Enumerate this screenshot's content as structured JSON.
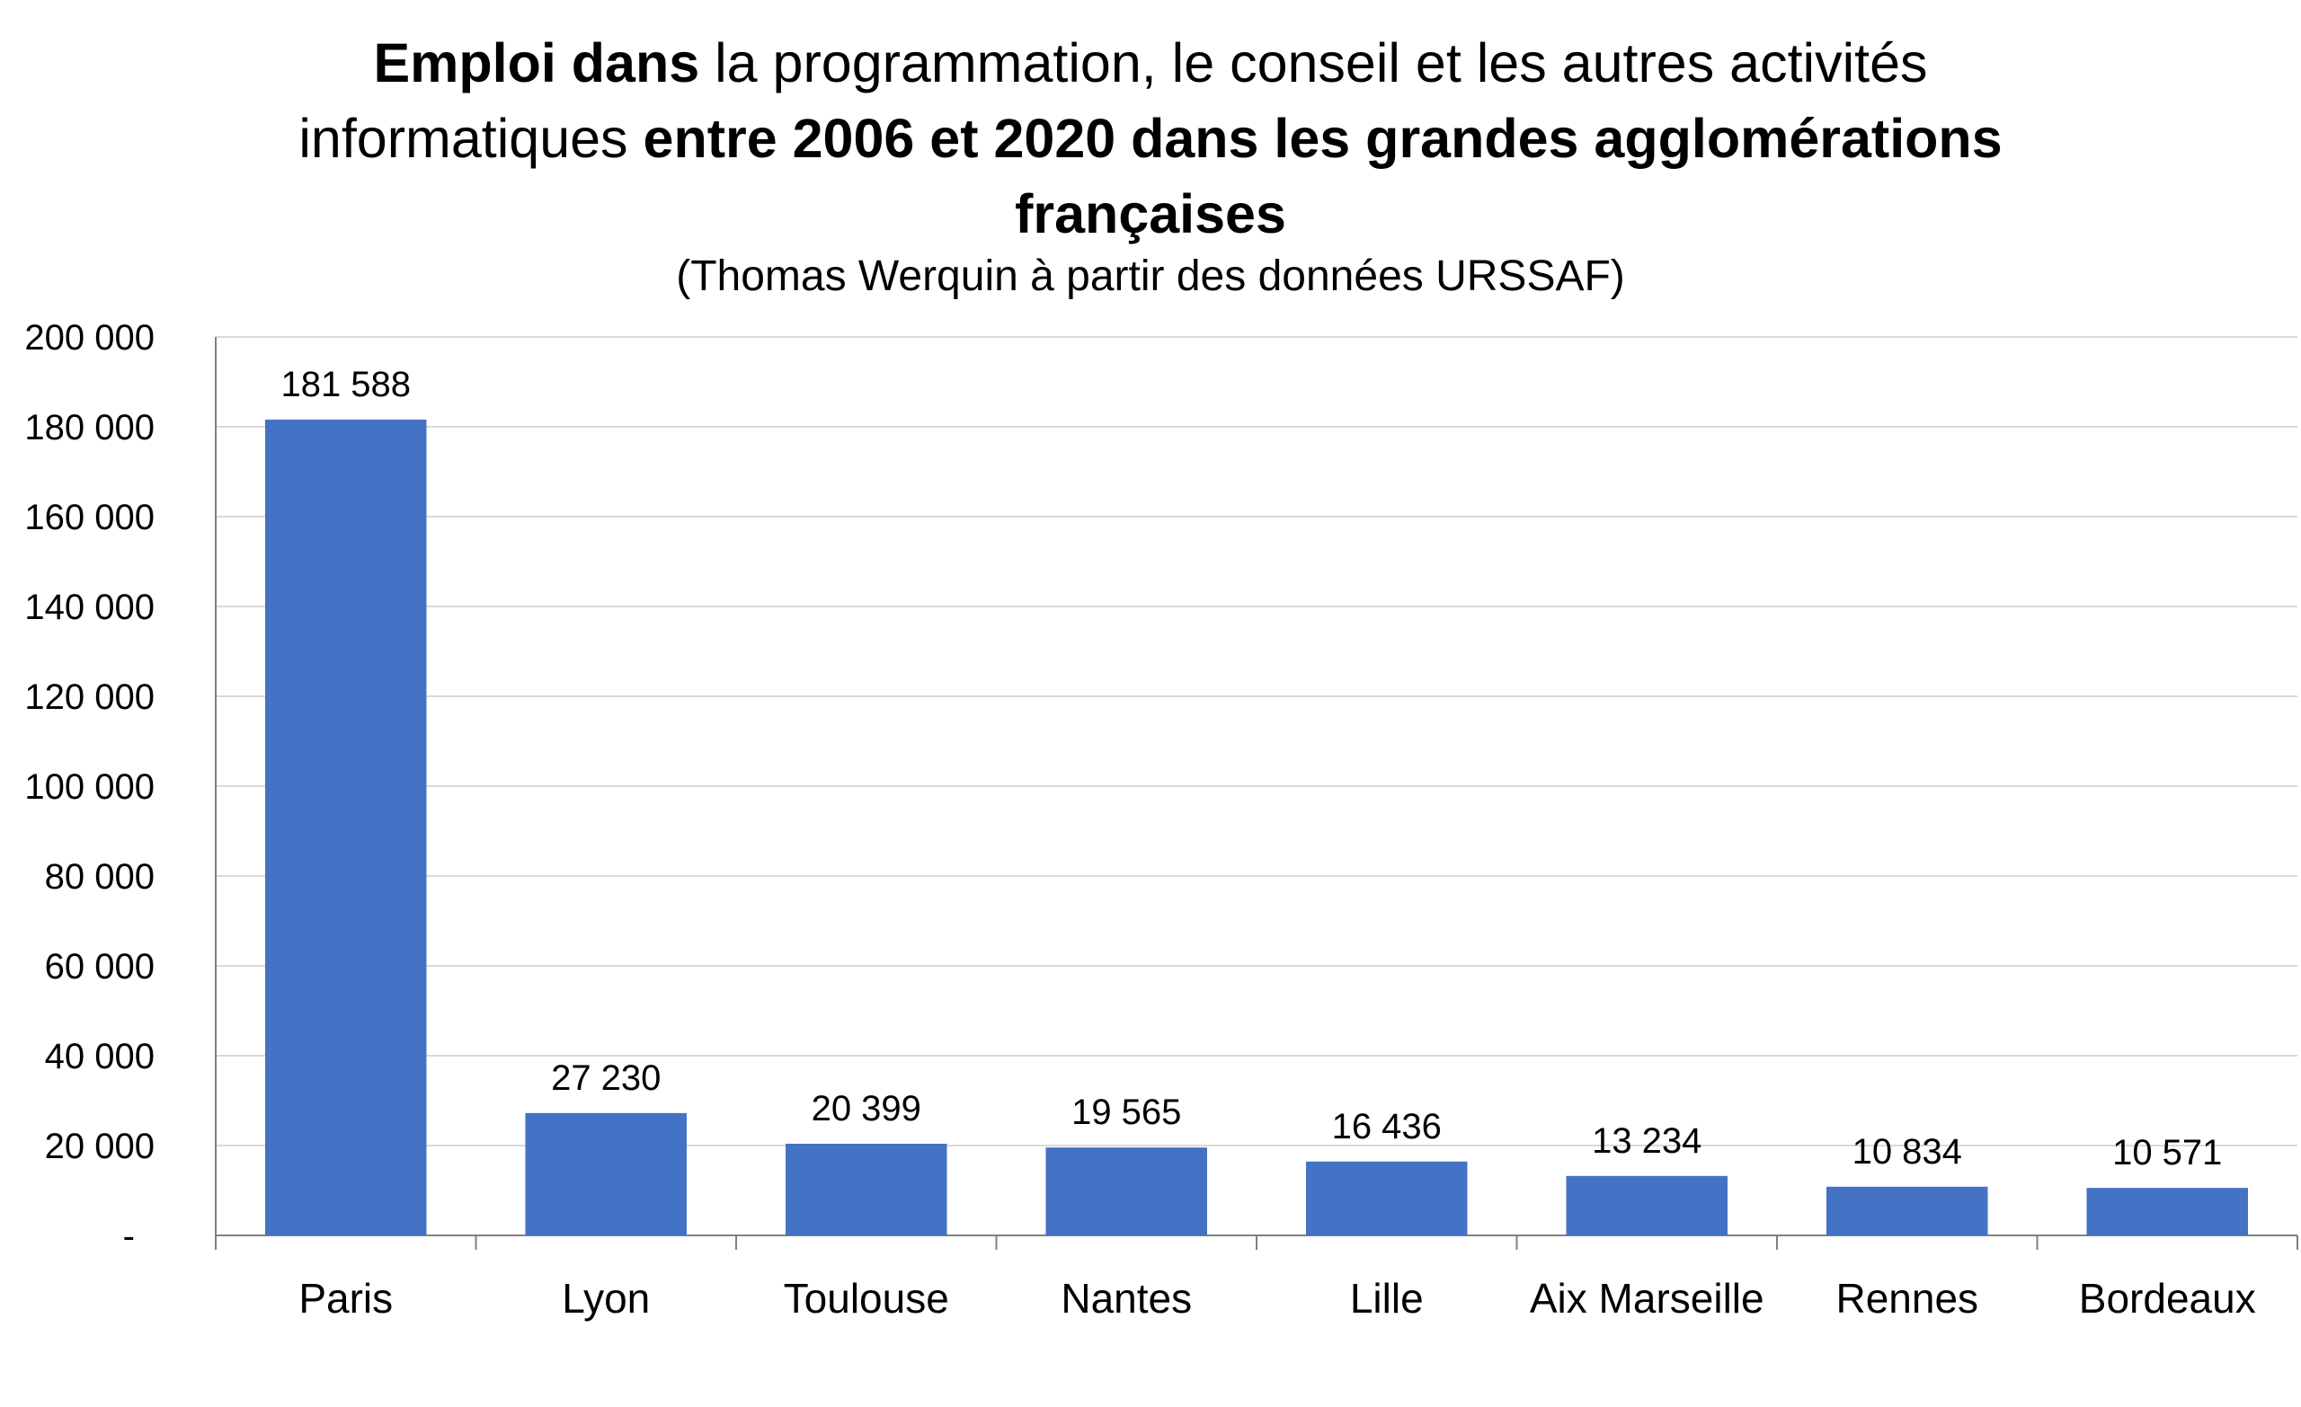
{
  "chart_data": {
    "type": "bar",
    "title_parts": [
      {
        "text": "Emploi dans",
        "bold": true
      },
      {
        "text": " la programmation, le conseil et les autres activités informatiques ",
        "bold": false
      },
      {
        "text": "entre 2006 et 2020 dans les grandes agglomérations françaises",
        "bold": true
      }
    ],
    "subtitle": "(Thomas Werquin à partir des données URSSAF)",
    "categories": [
      "Paris",
      "Lyon",
      "Toulouse",
      "Nantes",
      "Lille",
      "Aix Marseille",
      "Rennes",
      "Bordeaux"
    ],
    "values": [
      181588,
      27230,
      20399,
      19565,
      16436,
      13234,
      10834,
      10571
    ],
    "data_labels": [
      "181 588",
      "27 230",
      "20 399",
      "19 565",
      "16 436",
      "13 234",
      "10 834",
      "10 571"
    ],
    "ylim": [
      0,
      200000
    ],
    "yticks": [
      0,
      20000,
      40000,
      60000,
      80000,
      100000,
      120000,
      140000,
      160000,
      180000,
      200000
    ],
    "ytick_labels": [
      "-",
      "20 000",
      "40 000",
      "60 000",
      "80 000",
      "100 000",
      "120 000",
      "140 000",
      "160 000",
      "180 000",
      "200 000"
    ],
    "xlabel": "",
    "ylabel": "",
    "grid": true,
    "legend": "none",
    "colors": {
      "bar": "#4472C4",
      "grid": "#D9D9D9",
      "axis": "#808080"
    }
  }
}
